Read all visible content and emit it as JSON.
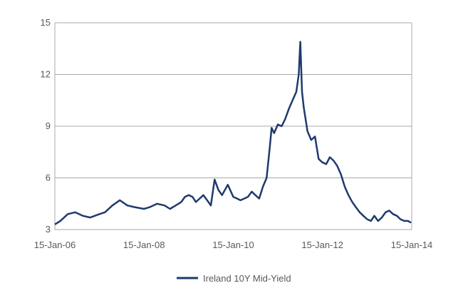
{
  "chart_data": {
    "type": "line",
    "title": "",
    "xlabel": "",
    "ylabel": "",
    "xlim": [
      "2006-01-15",
      "2014-01-15"
    ],
    "ylim": [
      3,
      15
    ],
    "y_ticks": [
      3,
      6,
      9,
      12,
      15
    ],
    "y_tick_labels": [
      "3",
      "6",
      "9",
      "12",
      "15"
    ],
    "x_ticks": [
      "2006-01-15",
      "2008-01-15",
      "2010-01-15",
      "2012-01-15",
      "2014-01-15"
    ],
    "x_tick_labels": [
      "15-Jan-06",
      "15-Jan-08",
      "15-Jan-10",
      "15-Jan-12",
      "15-Jan-14"
    ],
    "grid": "horizontal",
    "legend_position": "bottom",
    "series": [
      {
        "name": "Ireland 10Y Mid-Yield",
        "color": "#1f3a6e",
        "x": [
          "2006-01-15",
          "2006-03-01",
          "2006-05-01",
          "2006-07-01",
          "2006-09-01",
          "2006-11-01",
          "2007-01-15",
          "2007-03-01",
          "2007-05-01",
          "2007-07-01",
          "2007-09-01",
          "2007-11-01",
          "2008-01-15",
          "2008-03-01",
          "2008-05-01",
          "2008-07-01",
          "2008-08-15",
          "2008-10-01",
          "2008-11-15",
          "2008-12-15",
          "2009-01-15",
          "2009-02-15",
          "2009-03-15",
          "2009-04-15",
          "2009-05-15",
          "2009-06-15",
          "2009-07-15",
          "2009-08-15",
          "2009-09-15",
          "2009-10-15",
          "2009-12-01",
          "2010-01-15",
          "2010-02-15",
          "2010-03-15",
          "2010-04-15",
          "2010-05-15",
          "2010-06-15",
          "2010-07-15",
          "2010-08-15",
          "2010-09-15",
          "2010-10-15",
          "2010-11-10",
          "2010-11-25",
          "2010-12-15",
          "2011-01-15",
          "2011-02-15",
          "2011-03-15",
          "2011-04-15",
          "2011-05-15",
          "2011-06-15",
          "2011-07-05",
          "2011-07-18",
          "2011-08-01",
          "2011-08-15",
          "2011-09-15",
          "2011-10-15",
          "2011-11-15",
          "2011-12-15",
          "2012-01-15",
          "2012-02-15",
          "2012-03-15",
          "2012-04-15",
          "2012-05-15",
          "2012-06-15",
          "2012-07-15",
          "2012-08-15",
          "2012-09-15",
          "2012-10-15",
          "2012-11-15",
          "2012-12-15",
          "2013-01-15",
          "2013-02-15",
          "2013-03-15",
          "2013-04-15",
          "2013-05-15",
          "2013-06-15",
          "2013-07-15",
          "2013-08-15",
          "2013-09-15",
          "2013-10-15",
          "2013-11-15",
          "2013-12-15",
          "2014-01-10"
        ],
        "values": [
          3.3,
          3.5,
          3.9,
          4.0,
          3.8,
          3.7,
          3.9,
          4.0,
          4.4,
          4.7,
          4.4,
          4.3,
          4.2,
          4.3,
          4.5,
          4.4,
          4.2,
          4.4,
          4.6,
          4.9,
          5.0,
          4.9,
          4.6,
          4.8,
          5.0,
          4.7,
          4.4,
          5.9,
          5.3,
          5.0,
          5.6,
          4.9,
          4.8,
          4.7,
          4.8,
          4.9,
          5.2,
          5.0,
          4.8,
          5.5,
          6.0,
          7.8,
          8.9,
          8.6,
          9.1,
          9.0,
          9.4,
          10.0,
          10.5,
          11.0,
          12.0,
          13.9,
          11.0,
          10.1,
          8.7,
          8.2,
          8.4,
          7.1,
          6.9,
          6.8,
          7.2,
          7.0,
          6.7,
          6.2,
          5.5,
          5.0,
          4.6,
          4.3,
          4.0,
          3.8,
          3.6,
          3.5,
          3.8,
          3.5,
          3.7,
          4.0,
          4.1,
          3.9,
          3.8,
          3.6,
          3.5,
          3.5,
          3.4
        ]
      }
    ]
  }
}
